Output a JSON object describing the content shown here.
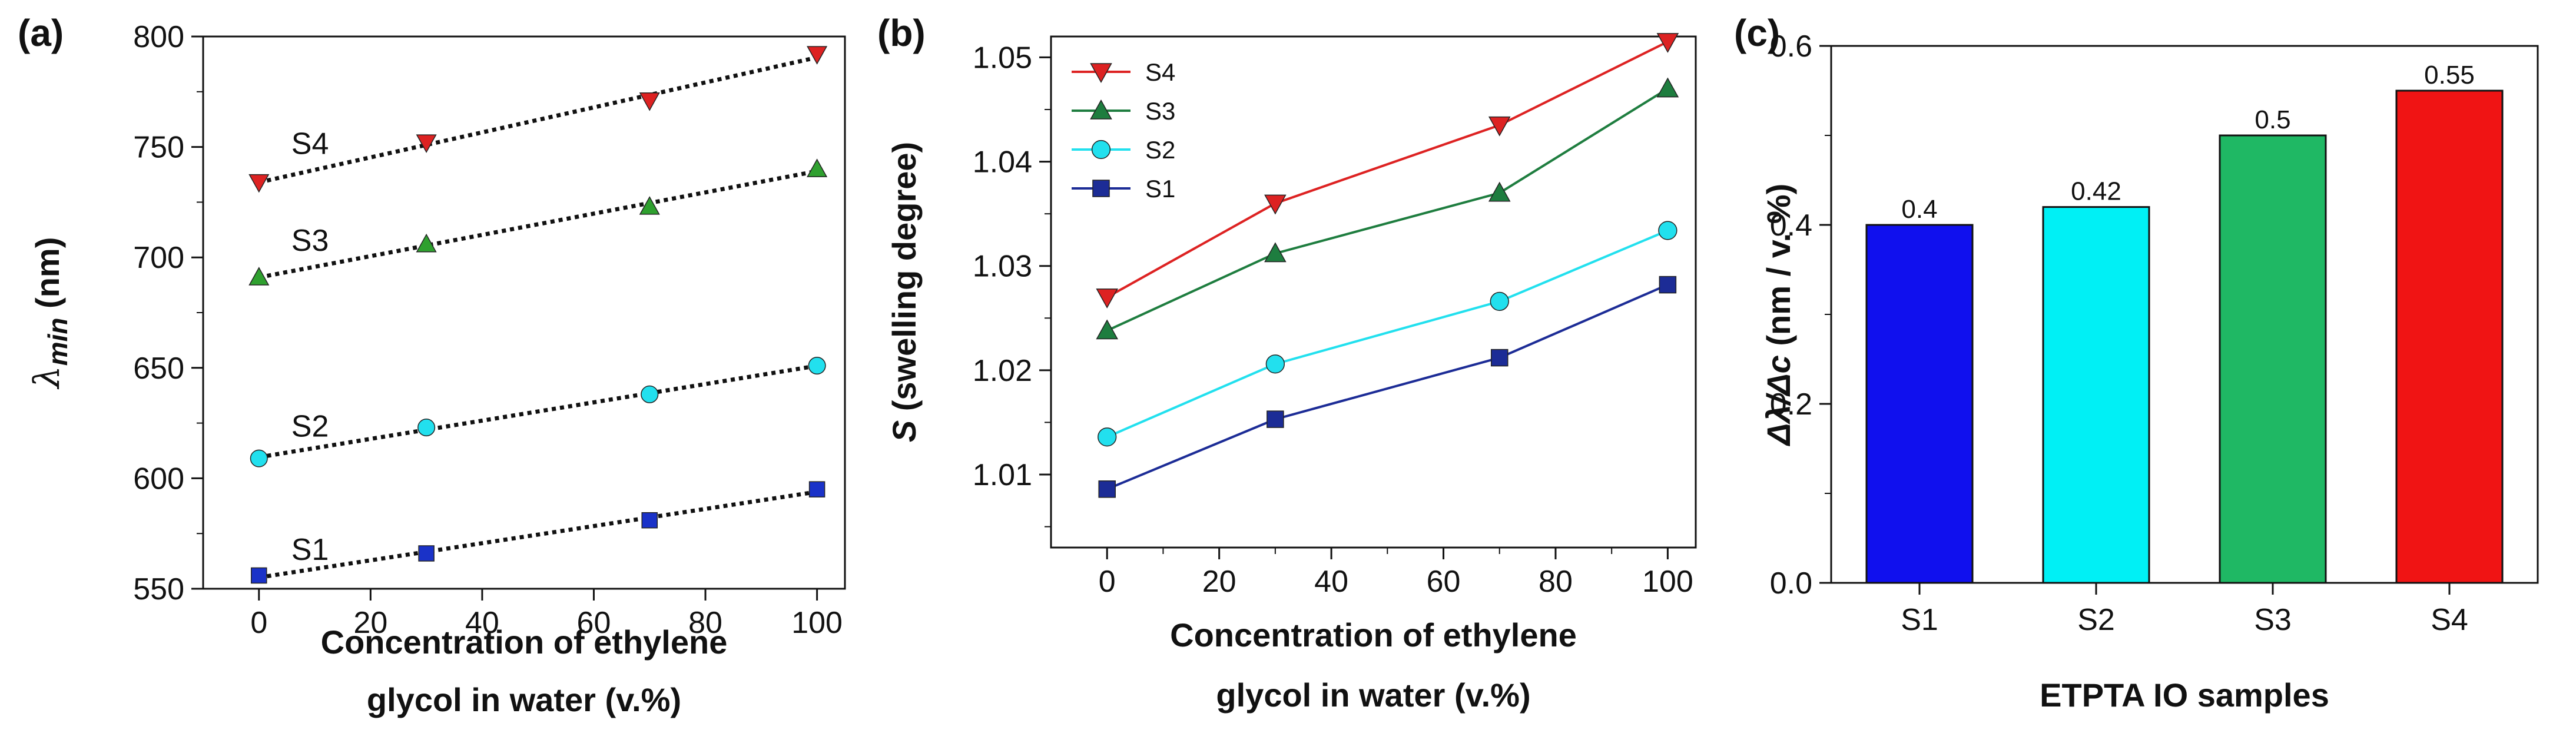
{
  "chart_data": [
    {
      "panel": "(a)",
      "type": "scatter",
      "xlabel": [
        "Concentration of ethylene",
        "glycol in water (v.%)"
      ],
      "ylabel": "λmin (nm)",
      "ylabel_main": "λ",
      "ylabel_sub": "min",
      "ylabel_unit": " (nm)",
      "xlim": [
        -10,
        105
      ],
      "ylim": [
        550,
        800
      ],
      "xticks": [
        0,
        20,
        40,
        60,
        80,
        100
      ],
      "yticks": [
        550,
        600,
        650,
        700,
        750,
        800
      ],
      "x": [
        0,
        30,
        70,
        100
      ],
      "fit": "dotted linear fit",
      "series": [
        {
          "name": "S1",
          "color": "#1a32c8",
          "marker": "square",
          "values": [
            556,
            566,
            581,
            595
          ]
        },
        {
          "name": "S2",
          "color": "#22e0ee",
          "marker": "circle",
          "values": [
            609,
            623,
            638,
            651
          ]
        },
        {
          "name": "S3",
          "color": "#2fa02f",
          "marker": "triangle-up",
          "values": [
            691,
            706,
            723,
            740
          ]
        },
        {
          "name": "S4",
          "color": "#dd2222",
          "marker": "triangle-down",
          "values": [
            734,
            752,
            771,
            792
          ]
        }
      ]
    },
    {
      "panel": "(b)",
      "type": "line",
      "xlabel": [
        "Concentration of ethylene",
        "glycol in water (v.%)"
      ],
      "ylabel": "S (swelling degree)",
      "ylabel_main": "S",
      "ylabel_rest": " (swelling degree)",
      "xlim": [
        -10,
        105
      ],
      "ylim": [
        1.003,
        1.052
      ],
      "xticks": [
        0,
        20,
        40,
        60,
        80,
        100
      ],
      "yticks": [
        "1.01",
        "1.02",
        "1.03",
        "1.04",
        "1.05"
      ],
      "x": [
        0,
        30,
        70,
        100
      ],
      "legend_position": "top-left",
      "series": [
        {
          "name": "S4",
          "color": "#dd2222",
          "marker": "triangle-down",
          "values": [
            1.027,
            1.036,
            1.0435,
            1.0515
          ]
        },
        {
          "name": "S3",
          "color": "#1e7d3f",
          "marker": "triangle-up",
          "values": [
            1.0238,
            1.0312,
            1.037,
            1.047
          ]
        },
        {
          "name": "S2",
          "color": "#22e0ee",
          "marker": "circle",
          "values": [
            1.0136,
            1.0206,
            1.0266,
            1.0334
          ]
        },
        {
          "name": "S1",
          "color": "#1c2c96",
          "marker": "square",
          "values": [
            1.0086,
            1.0153,
            1.0212,
            1.0282
          ]
        }
      ]
    },
    {
      "panel": "(c)",
      "type": "bar",
      "xlabel": "ETPTA IO samples",
      "ylabel": "Δλ/Δc (nm / v. %)",
      "ylabel_main": "Δλ/Δc",
      "ylabel_rest": " (nm / v. %)",
      "ylim": [
        0,
        0.6
      ],
      "yticks": [
        "0.0",
        "0.2",
        "0.4",
        "0.6"
      ],
      "categories": [
        "S1",
        "S2",
        "S3",
        "S4"
      ],
      "values": [
        0.4,
        0.42,
        0.5,
        0.55
      ],
      "labels": [
        "0.4",
        "0.42",
        "0.5",
        "0.55"
      ],
      "colors": [
        "#1010ee",
        "#00f0f5",
        "#1fb864",
        "#f01414"
      ]
    }
  ]
}
